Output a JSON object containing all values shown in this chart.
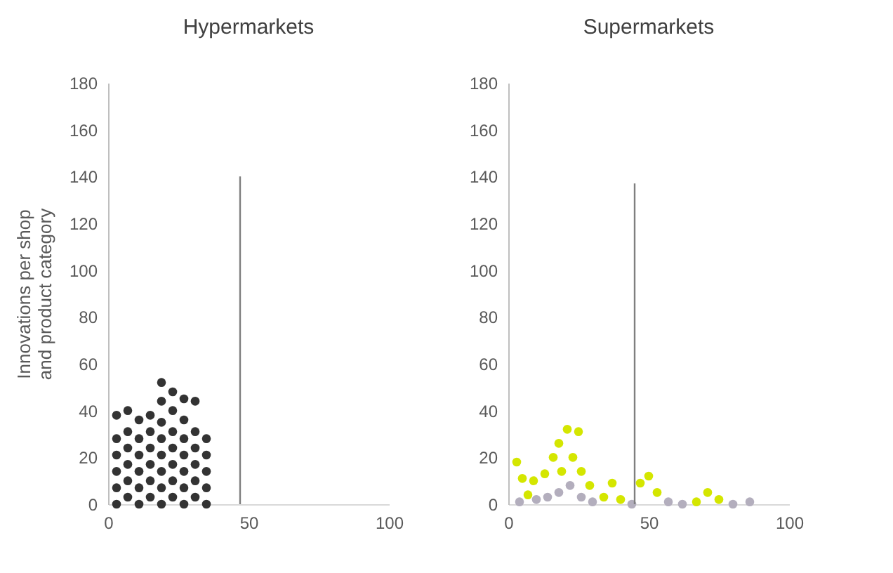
{
  "chart_data": [
    {
      "type": "scatter",
      "title": "Hypermarkets",
      "ylabel": "Innovations per shop and product category",
      "xlim": [
        0,
        100
      ],
      "xticks": [
        0,
        50,
        100
      ],
      "ylim": [
        0,
        180
      ],
      "yticks": [
        0,
        20,
        40,
        60,
        80,
        100,
        120,
        140,
        160,
        180
      ],
      "grid": false,
      "marker": "circle",
      "series": [
        {
          "color": "#333333",
          "x": [
            3,
            3,
            3,
            3,
            3,
            3,
            7,
            7,
            7,
            7,
            7,
            7,
            11,
            11,
            11,
            11,
            11,
            11,
            15,
            15,
            15,
            15,
            15,
            15,
            19,
            19,
            19,
            19,
            19,
            19,
            19,
            19,
            23,
            23,
            23,
            23,
            23,
            23,
            23,
            27,
            27,
            27,
            27,
            27,
            27,
            27,
            31,
            31,
            31,
            31,
            31,
            31,
            35,
            35,
            35,
            35,
            35
          ],
          "values": [
            0,
            7,
            14,
            21,
            28,
            38,
            3,
            10,
            17,
            24,
            31,
            40,
            0,
            7,
            14,
            21,
            28,
            36,
            3,
            10,
            17,
            24,
            31,
            38,
            0,
            7,
            14,
            21,
            28,
            35,
            44,
            52,
            3,
            10,
            17,
            24,
            31,
            40,
            48,
            0,
            7,
            14,
            21,
            28,
            36,
            45,
            3,
            10,
            17,
            24,
            31,
            44,
            0,
            7,
            14,
            21,
            28
          ]
        },
        {
          "type": "line",
          "marker": "none",
          "color": "#7f7f7f",
          "x": [
            47,
            47
          ],
          "values": [
            0,
            140
          ]
        }
      ]
    },
    {
      "type": "scatter",
      "title": "Supermarkets",
      "xlim": [
        0,
        100
      ],
      "xticks": [
        0,
        50,
        100
      ],
      "ylim": [
        0,
        180
      ],
      "yticks": [
        0,
        20,
        40,
        60,
        80,
        100,
        120,
        140,
        160,
        180
      ],
      "grid": false,
      "marker": "circle",
      "series": [
        {
          "color": "#b3aebd",
          "x": [
            4,
            10,
            14,
            18,
            22,
            26,
            30,
            44,
            57,
            62,
            80,
            86
          ],
          "values": [
            1,
            2,
            3,
            5,
            8,
            3,
            1,
            0,
            1,
            0,
            0,
            1
          ]
        },
        {
          "color": "#d4e600",
          "x": [
            3,
            5,
            7,
            9,
            13,
            16,
            18,
            19,
            21,
            23,
            25,
            26,
            29,
            34,
            37,
            40,
            47,
            50,
            53,
            67,
            71,
            75
          ],
          "values": [
            18,
            11,
            4,
            10,
            13,
            20,
            26,
            14,
            32,
            20,
            31,
            14,
            8,
            3,
            9,
            2,
            9,
            12,
            5,
            1,
            5,
            2
          ]
        },
        {
          "type": "line",
          "marker": "none",
          "color": "#7f7f7f",
          "x": [
            45,
            45
          ],
          "values": [
            0,
            137
          ]
        }
      ]
    }
  ]
}
